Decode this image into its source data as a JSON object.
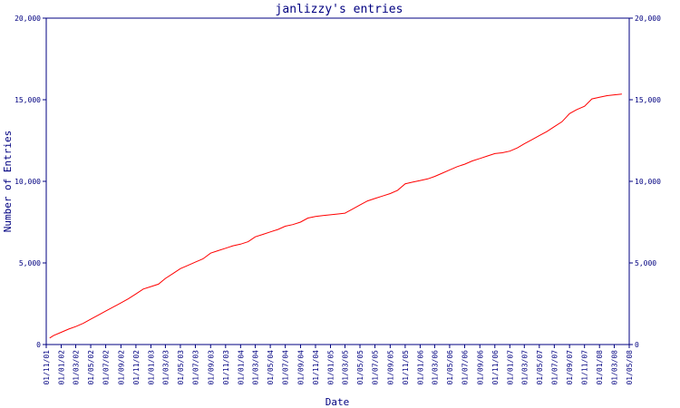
{
  "chart_data": {
    "type": "line",
    "title": "janlizzy's entries",
    "xlabel": "Date",
    "ylabel": "Number of Entries",
    "ylim": [
      0,
      20000
    ],
    "x_tick_labels": [
      "01/11/01",
      "01/01/02",
      "01/03/02",
      "01/05/02",
      "01/07/02",
      "01/09/02",
      "01/11/02",
      "01/01/03",
      "01/03/03",
      "01/05/03",
      "01/07/03",
      "01/09/03",
      "01/11/03",
      "01/01/04",
      "01/03/04",
      "01/05/04",
      "01/07/04",
      "01/09/04",
      "01/11/04",
      "01/01/05",
      "01/03/05",
      "01/05/05",
      "01/07/05",
      "01/09/05",
      "01/11/05",
      "01/01/06",
      "01/03/06",
      "01/05/06",
      "01/07/06",
      "01/09/06",
      "01/11/06",
      "01/01/07",
      "01/03/07",
      "01/05/07",
      "01/07/07",
      "01/09/07",
      "01/11/07",
      "01/01/08",
      "01/03/08",
      "01/05/08"
    ],
    "y_tick_labels": [
      "0",
      "5,000",
      "10,000",
      "15,000",
      "20,000"
    ],
    "y_ticks": [
      0,
      5000,
      10000,
      15000,
      20000
    ],
    "grid": false,
    "colors": {
      "axis": "#000080",
      "series": "#ff0000",
      "text": "#000080"
    },
    "series": [
      {
        "x": [
          "2001-11-15",
          "2001-12-01",
          "2002-01-01",
          "2002-02-01",
          "2002-03-01",
          "2002-04-01",
          "2002-05-01",
          "2002-06-01",
          "2002-07-01",
          "2002-08-01",
          "2002-09-01",
          "2002-10-01",
          "2002-11-01",
          "2002-12-01",
          "2003-01-01",
          "2003-02-01",
          "2003-03-01",
          "2003-04-01",
          "2003-05-01",
          "2003-06-01",
          "2003-07-01",
          "2003-08-01",
          "2003-09-01",
          "2003-10-01",
          "2003-11-01",
          "2003-12-01",
          "2004-01-01",
          "2004-02-01",
          "2004-03-01",
          "2004-04-01",
          "2004-05-01",
          "2004-06-01",
          "2004-07-01",
          "2004-08-01",
          "2004-09-01",
          "2004-10-01",
          "2004-11-01",
          "2004-12-01",
          "2005-01-01",
          "2005-02-01",
          "2005-03-01",
          "2005-04-01",
          "2005-05-01",
          "2005-06-01",
          "2005-07-01",
          "2005-08-01",
          "2005-09-01",
          "2005-10-01",
          "2005-11-01",
          "2005-12-01",
          "2006-01-01",
          "2006-02-01",
          "2006-03-01",
          "2006-04-01",
          "2006-05-01",
          "2006-06-01",
          "2006-07-01",
          "2006-08-01",
          "2006-09-01",
          "2006-10-01",
          "2006-11-01",
          "2006-12-01",
          "2007-01-01",
          "2007-02-01",
          "2007-03-01",
          "2007-04-01",
          "2007-05-01",
          "2007-06-01",
          "2007-07-01",
          "2007-08-01",
          "2007-09-01",
          "2007-10-01",
          "2007-11-01",
          "2007-12-01",
          "2008-01-01",
          "2008-02-01",
          "2008-03-01",
          "2008-04-01"
        ],
        "y": [
          400,
          550,
          750,
          950,
          1100,
          1300,
          1550,
          1800,
          2050,
          2300,
          2550,
          2800,
          3100,
          3400,
          3550,
          3700,
          4050,
          4350,
          4650,
          4850,
          5050,
          5250,
          5600,
          5750,
          5900,
          6050,
          6150,
          6300,
          6600,
          6750,
          6900,
          7050,
          7250,
          7350,
          7500,
          7750,
          7850,
          7900,
          7950,
          8000,
          8050,
          8300,
          8550,
          8800,
          8950,
          9100,
          9250,
          9450,
          9850,
          9950,
          10050,
          10150,
          10300,
          10500,
          10700,
          10900,
          11050,
          11250,
          11400,
          11550,
          11700,
          11750,
          11850,
          12050,
          12300,
          12550,
          12800,
          13050,
          13350,
          13650,
          14150,
          14400,
          14600,
          15050,
          15150,
          15250,
          15300,
          15350
        ]
      }
    ]
  }
}
